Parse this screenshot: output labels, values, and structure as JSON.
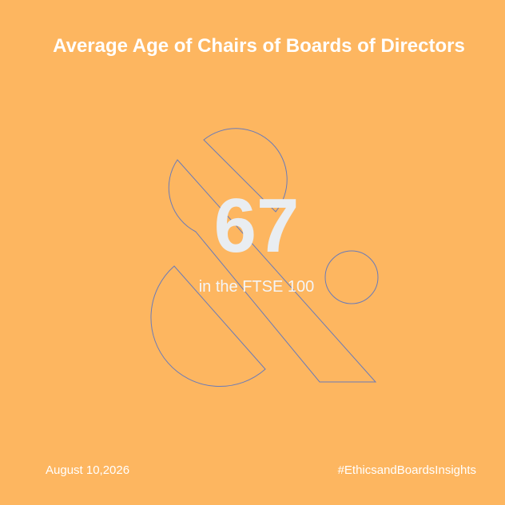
{
  "title": "Average Age of Chairs of Boards of Directors",
  "value": 67,
  "subtitle": "in the FTSE 100",
  "footer": {
    "date": "August 10,2026",
    "hashtag": "#EthicsandBoardsInsights"
  }
}
